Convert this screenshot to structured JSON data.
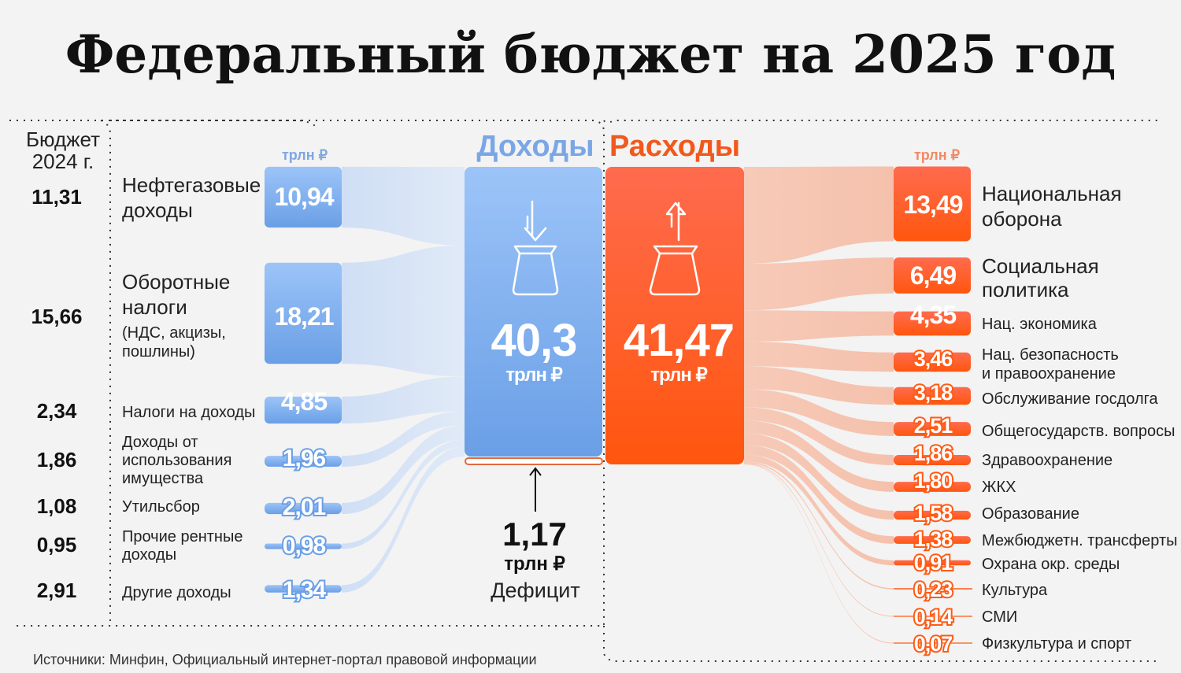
{
  "title": "Федеральный бюджет на 2025 год",
  "prev_year_header": [
    "Бюджет",
    "2024 г."
  ],
  "unit": "трлн ₽",
  "income": {
    "header": "Доходы",
    "total": "40,3",
    "color": "#6fa3ea",
    "items": [
      {
        "label_lines": [
          "Нефтегазовые",
          "доходы"
        ],
        "sub_lines": [],
        "value": "10,94",
        "prev": "11,31"
      },
      {
        "label_lines": [
          "Оборотные",
          "налоги"
        ],
        "sub_lines": [
          "(НДС, акцизы,",
          "пошлины)"
        ],
        "value": "18,21",
        "prev": "15,66"
      },
      {
        "label_lines": [
          "Налоги на доходы"
        ],
        "sub_lines": [],
        "value": "4,85",
        "prev": "2,34"
      },
      {
        "label_lines": [
          "Доходы от",
          "использования",
          "имущества"
        ],
        "sub_lines": [],
        "value": "1,96",
        "prev": "1,86"
      },
      {
        "label_lines": [
          "Утильсбор"
        ],
        "sub_lines": [],
        "value": "2,01",
        "prev": "1,08"
      },
      {
        "label_lines": [
          "Прочие рентные",
          "доходы"
        ],
        "sub_lines": [],
        "value": "0,98",
        "prev": "0,95"
      },
      {
        "label_lines": [
          "Другие доходы"
        ],
        "sub_lines": [],
        "value": "1,34",
        "prev": "2,91"
      }
    ]
  },
  "expenses": {
    "header": "Расходы",
    "total": "41,47",
    "color": "#ff5a14",
    "items": [
      {
        "label_lines": [
          "Национальная",
          "оборона"
        ],
        "value": "13,49"
      },
      {
        "label_lines": [
          "Социальная",
          "политика"
        ],
        "value": "6,49"
      },
      {
        "label_lines": [
          "Нац. экономика"
        ],
        "value": "4,35"
      },
      {
        "label_lines": [
          "Нац. безопасность",
          "и правоохранение"
        ],
        "value": "3,46"
      },
      {
        "label_lines": [
          "Обслуживание госдолга"
        ],
        "value": "3,18"
      },
      {
        "label_lines": [
          "Общегосударств. вопросы"
        ],
        "value": "2,51"
      },
      {
        "label_lines": [
          "Здравоохранение"
        ],
        "value": "1,86"
      },
      {
        "label_lines": [
          "ЖКХ"
        ],
        "value": "1,80"
      },
      {
        "label_lines": [
          "Образование"
        ],
        "value": "1,58"
      },
      {
        "label_lines": [
          "Межбюджетн. трансферты"
        ],
        "value": "1,38"
      },
      {
        "label_lines": [
          "Охрана окр. среды"
        ],
        "value": "0,91"
      },
      {
        "label_lines": [
          "Культура"
        ],
        "value": "0,23"
      },
      {
        "label_lines": [
          "СМИ"
        ],
        "value": "0,14"
      },
      {
        "label_lines": [
          "Физкультура и спорт"
        ],
        "value": "0,07"
      }
    ]
  },
  "deficit": {
    "value": "1,17",
    "unit": "трлн ₽",
    "label": "Дефицит"
  },
  "source": "Источники: Минфин, Официальный интернет-портал правовой информации"
}
